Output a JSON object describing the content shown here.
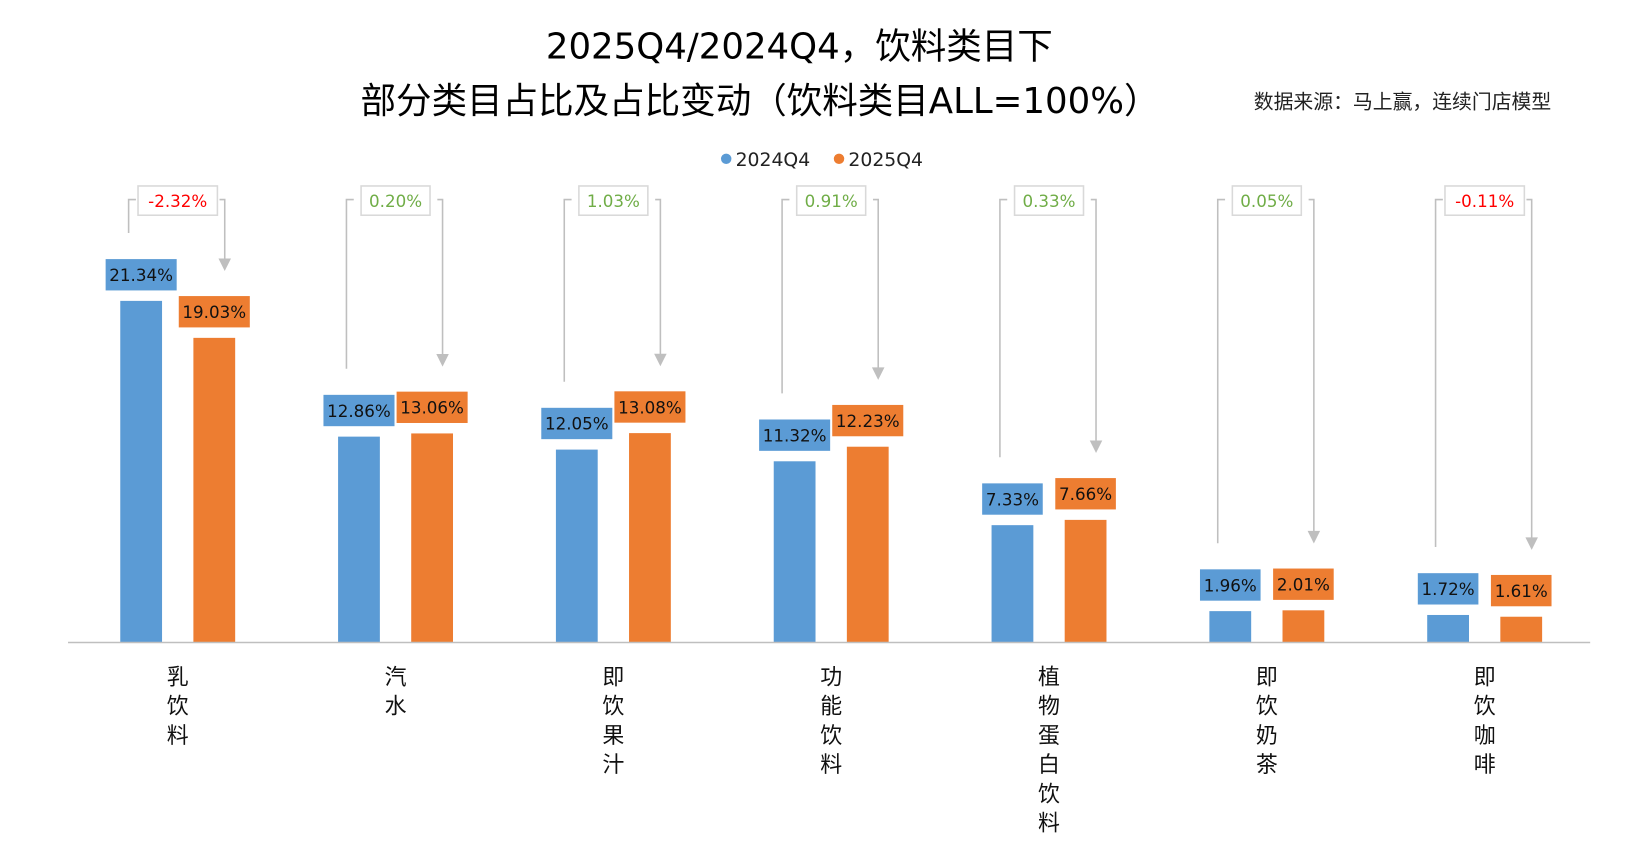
{
  "chart_data": {
    "type": "bar",
    "title_line1": "2025Q4/2024Q4，饮料类目下",
    "title_line2": "部分类目占比及占比变动（饮料类目ALL=100%）",
    "source": "数据来源：马上赢，连续门店模型",
    "categories": [
      "乳饮料",
      "汽水",
      "即饮果汁",
      "功能饮料",
      "植物蛋白饮料",
      "即饮奶茶",
      "即饮咖啡"
    ],
    "series": [
      {
        "name": "2024Q4",
        "color": "#5B9BD5",
        "values": [
          21.34,
          12.86,
          12.05,
          11.32,
          7.33,
          1.96,
          1.72
        ],
        "labels": [
          "21.34%",
          "12.86%",
          "12.05%",
          "11.32%",
          "7.33%",
          "1.96%",
          "1.72%"
        ]
      },
      {
        "name": "2025Q4",
        "color": "#ED7D31",
        "values": [
          19.03,
          13.06,
          13.08,
          12.23,
          7.66,
          2.01,
          1.61
        ],
        "labels": [
          "19.03%",
          "13.06%",
          "13.08%",
          "12.23%",
          "7.66%",
          "2.01%",
          "1.61%"
        ]
      }
    ],
    "changes": [
      -2.32,
      0.2,
      1.03,
      0.91,
      0.33,
      0.05,
      -0.11
    ],
    "change_labels": [
      "-2.32%",
      "0.20%",
      "1.03%",
      "0.91%",
      "0.33%",
      "0.05%",
      "-0.11%"
    ],
    "positive_color": "#70AD47",
    "negative_color": "#FF0000",
    "ylim": [
      0,
      25
    ],
    "grid": false,
    "legend_position": "top-center",
    "xlabel": "",
    "ylabel": ""
  }
}
